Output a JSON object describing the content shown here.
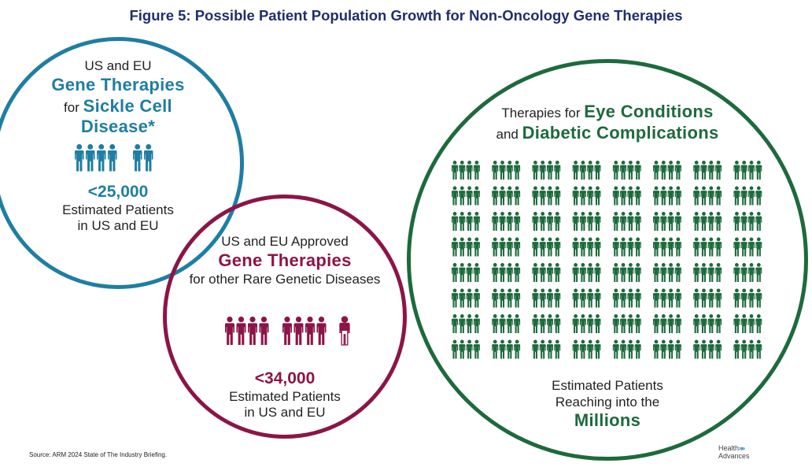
{
  "title": "Figure 5: Possible Patient Population Growth for Non-Oncology Gene Therapies",
  "colors": {
    "title": "#1f2f6b",
    "sickle_cell": "#1f7ea1",
    "rare_genetic": "#8b1547",
    "eye_diabetic": "#1d6a3c"
  },
  "sickle_cell": {
    "line1": "US and EU",
    "line2": "Gene Therapies",
    "line3_prefix": "for ",
    "line3_emph": "Sickle Cell",
    "line4": "Disease*",
    "value": "<25,000",
    "caption1": "Estimated Patients",
    "caption2": "in US and EU",
    "icon": "person-icon",
    "person_groups": [
      4,
      2
    ]
  },
  "rare_genetic": {
    "line1": "US and EU Approved",
    "line2": "Gene Therapies",
    "line3": "for other Rare Genetic Diseases",
    "value": "<34,000",
    "caption1": "Estimated Patients",
    "caption2": "in US and EU",
    "icon": "person-icon",
    "person_groups": [
      4,
      4,
      0.5
    ]
  },
  "eye_diabetic": {
    "line1_prefix": "Therapies for ",
    "line1_emph": "Eye Conditions",
    "line2_prefix": "and ",
    "line2_emph": "Diabetic Complications",
    "grid_rows": 8,
    "grid_cols": 8,
    "persons_per_group": 4,
    "caption1": "Estimated Patients",
    "caption2": "Reaching into the",
    "caption3": "Millions",
    "icon": "person-icon"
  },
  "source": "Source:  ARM 2024 State of The Industry Briefing.",
  "logo": {
    "line1": "Health",
    "line2": "Advances",
    "chevrons": "»»"
  }
}
